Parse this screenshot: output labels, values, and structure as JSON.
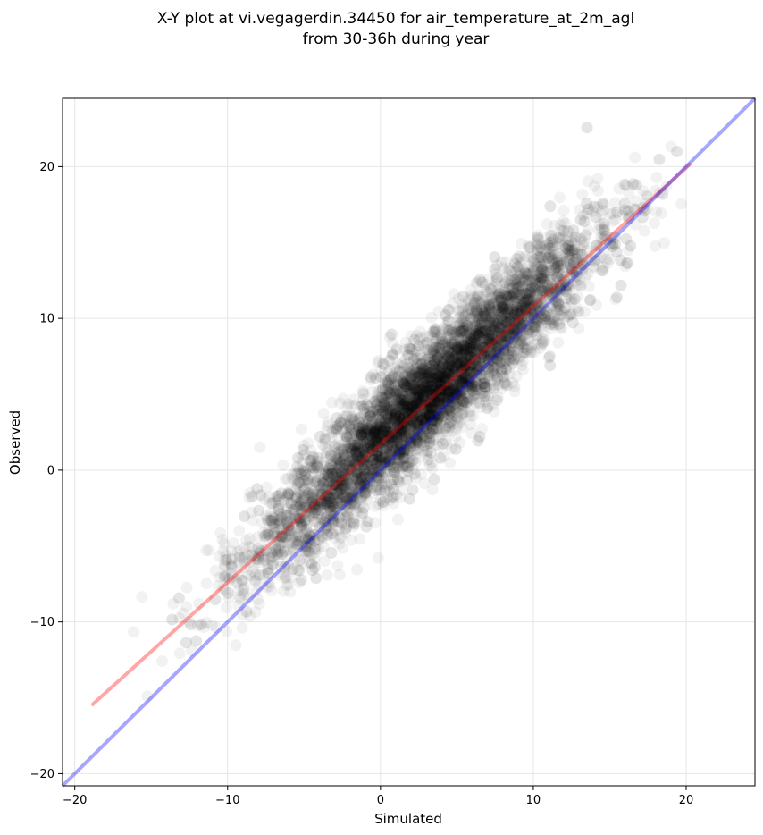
{
  "chart_data": {
    "type": "scatter",
    "title": "X-Y plot at vi.vegagerdin.34450 for air_temperature_at_2m_agl",
    "subtitle": "from 30-36h during year",
    "xlabel": "Simulated",
    "ylabel": "Observed",
    "xlim": [
      -20.8,
      24.5
    ],
    "ylim": [
      -20.8,
      24.5
    ],
    "x_ticks": [
      -20,
      -10,
      0,
      10,
      20
    ],
    "y_ticks": [
      -20,
      -10,
      0,
      10,
      20
    ],
    "x_tick_labels": [
      "−20",
      "−10",
      "0",
      "10",
      "20"
    ],
    "y_tick_labels": [
      "−20",
      "−10",
      "0",
      "10",
      "20"
    ],
    "grid": true,
    "series": [
      {
        "type": "scatter",
        "color": "#000000",
        "opacity": 0.05,
        "x_range": [
          -19,
          20.3
        ],
        "fit": {
          "slope": 0.92,
          "intercept": 2.0
        },
        "spread": 1.9,
        "approx_points": 6000
      },
      {
        "type": "line",
        "color": "#ff0000",
        "opacity": 0.35,
        "x": [
          -18.9,
          20.3
        ],
        "y": [
          -15.5,
          20.2
        ]
      },
      {
        "type": "line",
        "color": "#0000ff",
        "opacity": 0.35,
        "x": [
          -20.8,
          24.5
        ],
        "y": [
          -20.8,
          24.5
        ]
      }
    ]
  }
}
